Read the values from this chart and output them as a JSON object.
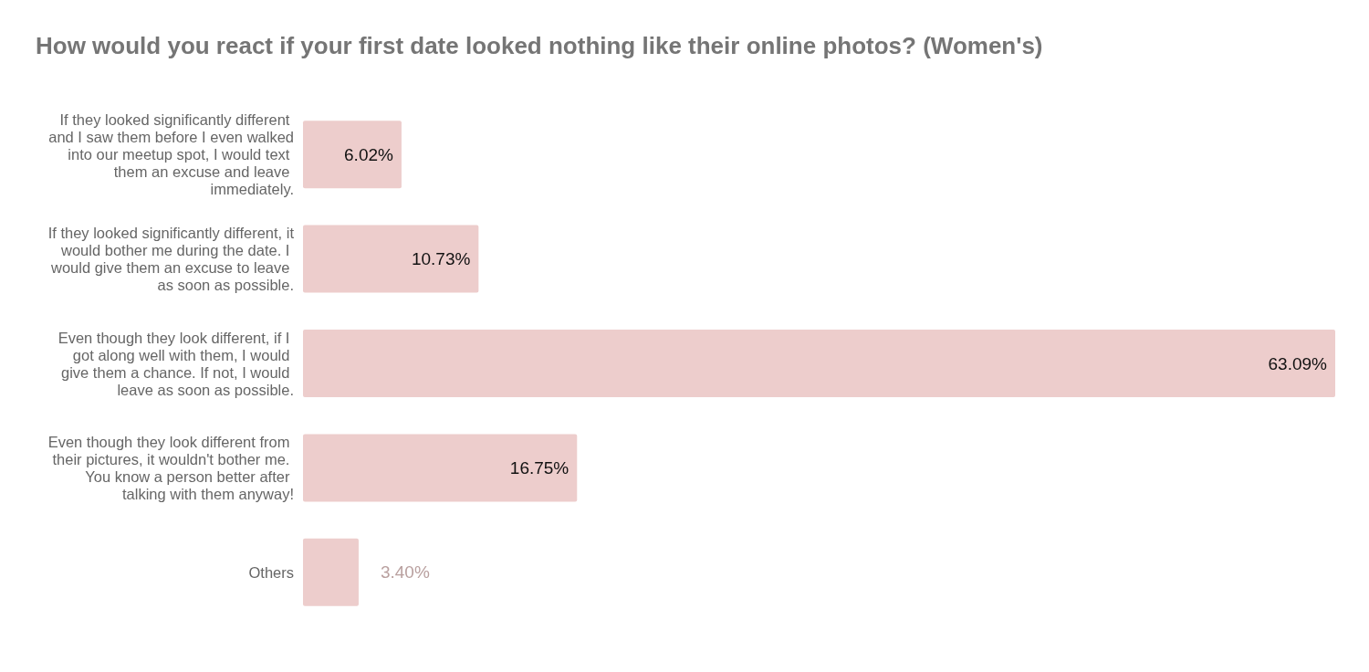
{
  "chart_data": {
    "type": "bar",
    "orientation": "horizontal",
    "title": "How would you react if your first date looked nothing like their online photos? (Women's)",
    "categories": [
      "If they looked significantly different and I saw them before I even walked into our meetup spot, I would text them an excuse and leave immediately.",
      "If they looked significantly different, it would bother me during the date. I would give them an excuse to leave as soon as possible.",
      "Even though they look different, if I got along well with them, I would give them a chance. If not, I would leave as soon as possible.",
      "Even though they look different from their pictures, it wouldn't bother me. You know a person better after talking with them anyway!",
      "Others"
    ],
    "values": [
      6.02,
      10.73,
      63.09,
      16.75,
      3.4
    ],
    "value_labels": [
      "6.02%",
      "10.73%",
      "63.09%",
      "16.75%",
      "3.40%"
    ],
    "color": "#edcdcc"
  }
}
